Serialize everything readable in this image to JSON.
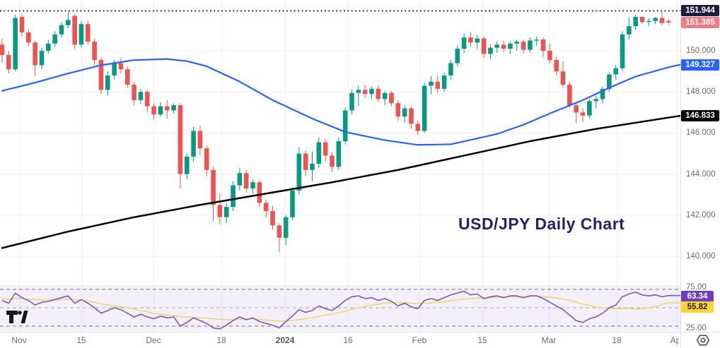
{
  "watermark": "USD/JPY Daily Chart",
  "logo": {
    "name": "tradingview-logo"
  },
  "axis_icon": {
    "name": "chart-settings-icon"
  },
  "colors": {
    "up": "#089981",
    "down": "#ef5350",
    "ma_fast": "#2962ff",
    "ma_slow": "#000000",
    "rsi": "#7e57c2",
    "rsi_ma": "#efd579",
    "grid": "#eef1f7",
    "axis_text": "#696c77",
    "high_badge_bg": "#221b3e",
    "last_badge_bg": "#ee7d88",
    "ma_fast_badge_bg": "#2962ff",
    "ma_slow_badge_bg": "#000000",
    "rsi_badge_bg": "#6c3dbe",
    "rsi_ma_badge_bg": "#fcd535",
    "rsi_band_fill": "rgba(126,87,194,0.09)",
    "dotted_line": "#221b3e"
  },
  "chart_data": {
    "type": "candlestick",
    "title": "USD/JPY Daily Chart",
    "symbol": "USD/JPY",
    "timeframe": "Daily",
    "price_axis": {
      "ticks": [
        {
          "label": "150.000",
          "value": 150.0
        },
        {
          "label": "148.000",
          "value": 148.0
        },
        {
          "label": "146.000",
          "value": 146.0
        },
        {
          "label": "144.000",
          "value": 144.0
        },
        {
          "label": "142.000",
          "value": 142.0
        },
        {
          "label": "140.000",
          "value": 140.0
        }
      ]
    },
    "x_axis": {
      "labels": [
        {
          "text": "Nov",
          "x": 27
        },
        {
          "text": "15",
          "x": 115
        },
        {
          "text": "Dec",
          "x": 217
        },
        {
          "text": "18",
          "x": 313
        },
        {
          "text": "2024",
          "x": 403,
          "year": true
        },
        {
          "text": "16",
          "x": 492
        },
        {
          "text": "Feb",
          "x": 593
        },
        {
          "text": "15",
          "x": 682
        },
        {
          "text": "Mar",
          "x": 776
        },
        {
          "text": "18",
          "x": 872
        },
        {
          "text": "Apr",
          "x": 957
        }
      ]
    },
    "high_line": {
      "label": "151.944",
      "value": 151.944,
      "style": "dotted"
    },
    "last_price": {
      "label": "151.385",
      "value": 151.385,
      "direction": "down"
    },
    "candles": [
      [
        150.3,
        150.6,
        149.4,
        149.8
      ],
      [
        149.8,
        150.0,
        148.9,
        149.1
      ],
      [
        149.1,
        151.75,
        149.0,
        151.6
      ],
      [
        151.65,
        151.8,
        150.7,
        150.9
      ],
      [
        150.9,
        151.05,
        150.2,
        150.4
      ],
      [
        150.4,
        150.5,
        148.75,
        149.3
      ],
      [
        149.3,
        150.15,
        149.1,
        150.0
      ],
      [
        150.0,
        150.55,
        149.85,
        150.35
      ],
      [
        150.35,
        150.95,
        150.2,
        150.8
      ],
      [
        150.8,
        151.4,
        150.65,
        151.25
      ],
      [
        151.25,
        151.92,
        151.1,
        151.5
      ],
      [
        151.7,
        151.8,
        150.1,
        150.3
      ],
      [
        150.3,
        151.45,
        150.15,
        151.3
      ],
      [
        151.3,
        151.45,
        150.3,
        150.45
      ],
      [
        150.45,
        150.6,
        149.3,
        149.55
      ],
      [
        149.55,
        149.7,
        147.9,
        148.1
      ],
      [
        148.1,
        149.0,
        147.8,
        148.8
      ],
      [
        148.8,
        149.55,
        148.6,
        149.4
      ],
      [
        149.4,
        149.65,
        148.9,
        149.1
      ],
      [
        149.1,
        149.25,
        148.2,
        148.35
      ],
      [
        148.35,
        148.5,
        147.35,
        147.6
      ],
      [
        147.6,
        148.15,
        147.4,
        148.0
      ],
      [
        148.0,
        148.1,
        147.0,
        147.3
      ],
      [
        147.3,
        147.45,
        146.65,
        146.9
      ],
      [
        146.9,
        147.5,
        146.8,
        147.3
      ],
      [
        147.3,
        147.6,
        146.7,
        147.1
      ],
      [
        147.1,
        147.45,
        146.95,
        147.35
      ],
      [
        147.35,
        147.45,
        143.3,
        144.0
      ],
      [
        144.0,
        145.0,
        143.75,
        144.85
      ],
      [
        144.85,
        146.3,
        144.6,
        146.1
      ],
      [
        146.1,
        146.35,
        144.9,
        145.25
      ],
      [
        145.25,
        145.4,
        143.9,
        144.2
      ],
      [
        144.2,
        144.35,
        141.7,
        142.5
      ],
      [
        142.5,
        143.05,
        141.55,
        141.9
      ],
      [
        141.9,
        142.6,
        141.6,
        142.4
      ],
      [
        142.4,
        143.65,
        142.2,
        143.45
      ],
      [
        143.45,
        144.3,
        143.2,
        144.05
      ],
      [
        144.05,
        144.2,
        143.1,
        143.3
      ],
      [
        143.3,
        143.75,
        143.05,
        143.6
      ],
      [
        143.6,
        143.7,
        142.4,
        142.6
      ],
      [
        142.6,
        142.75,
        141.9,
        142.2
      ],
      [
        142.2,
        142.45,
        141.3,
        141.5
      ],
      [
        141.5,
        141.6,
        140.2,
        140.9
      ],
      [
        140.9,
        142.0,
        140.55,
        141.9
      ],
      [
        141.9,
        143.35,
        141.75,
        143.2
      ],
      [
        143.2,
        145.3,
        143.0,
        145.0
      ],
      [
        145.0,
        145.15,
        143.9,
        144.2
      ],
      [
        144.2,
        145.1,
        143.65,
        144.5
      ],
      [
        144.5,
        145.8,
        144.3,
        145.55
      ],
      [
        145.55,
        145.7,
        144.6,
        144.9
      ],
      [
        144.9,
        145.05,
        144.1,
        144.35
      ],
      [
        144.35,
        145.8,
        144.2,
        145.6
      ],
      [
        145.6,
        147.25,
        145.45,
        147.1
      ],
      [
        147.1,
        148.1,
        146.9,
        147.95
      ],
      [
        147.95,
        148.3,
        147.3,
        148.1
      ],
      [
        148.1,
        148.35,
        147.7,
        147.9
      ],
      [
        147.9,
        148.25,
        147.65,
        148.15
      ],
      [
        148.15,
        148.3,
        147.5,
        147.65
      ],
      [
        147.65,
        148.05,
        147.35,
        147.95
      ],
      [
        147.95,
        148.05,
        147.3,
        147.45
      ],
      [
        147.45,
        147.6,
        146.6,
        146.8
      ],
      [
        146.8,
        147.35,
        146.5,
        147.2
      ],
      [
        147.2,
        147.3,
        146.2,
        146.45
      ],
      [
        146.45,
        146.6,
        145.9,
        146.1
      ],
      [
        146.1,
        148.45,
        146.0,
        148.3
      ],
      [
        148.3,
        148.75,
        147.9,
        148.5
      ],
      [
        148.5,
        148.8,
        147.95,
        148.15
      ],
      [
        148.15,
        148.95,
        148.0,
        148.8
      ],
      [
        148.8,
        149.55,
        148.6,
        149.4
      ],
      [
        149.4,
        150.25,
        149.25,
        150.1
      ],
      [
        150.1,
        150.85,
        149.9,
        150.65
      ],
      [
        150.65,
        150.9,
        150.2,
        150.4
      ],
      [
        150.4,
        150.75,
        150.1,
        150.6
      ],
      [
        150.6,
        150.7,
        149.65,
        149.85
      ],
      [
        149.85,
        150.3,
        149.6,
        150.15
      ],
      [
        150.15,
        150.45,
        149.9,
        150.3
      ],
      [
        150.3,
        150.5,
        149.95,
        150.1
      ],
      [
        150.1,
        150.45,
        149.85,
        150.35
      ],
      [
        150.35,
        150.55,
        150.0,
        150.45
      ],
      [
        150.45,
        150.55,
        149.9,
        150.05
      ],
      [
        150.05,
        150.65,
        149.9,
        150.5
      ],
      [
        150.5,
        150.7,
        150.25,
        150.55
      ],
      [
        150.55,
        150.65,
        149.7,
        150.0
      ],
      [
        150.0,
        150.35,
        149.4,
        149.55
      ],
      [
        149.55,
        149.7,
        148.8,
        149.0
      ],
      [
        149.0,
        149.5,
        148.2,
        148.35
      ],
      [
        148.35,
        148.5,
        147.2,
        147.35
      ],
      [
        147.35,
        147.5,
        146.5,
        147.0
      ],
      [
        147.0,
        147.2,
        146.55,
        146.85
      ],
      [
        146.85,
        147.65,
        146.7,
        147.55
      ],
      [
        147.55,
        147.8,
        147.2,
        147.65
      ],
      [
        147.65,
        148.25,
        147.45,
        148.15
      ],
      [
        148.15,
        148.95,
        148.0,
        148.85
      ],
      [
        148.85,
        149.3,
        148.6,
        149.15
      ],
      [
        149.15,
        150.95,
        149.0,
        150.8
      ],
      [
        150.8,
        151.6,
        150.55,
        151.2
      ],
      [
        151.2,
        151.75,
        151.0,
        151.65
      ],
      [
        151.65,
        151.7,
        151.3,
        151.4
      ],
      [
        151.4,
        151.6,
        151.2,
        151.45
      ],
      [
        151.45,
        151.65,
        151.3,
        151.6
      ],
      [
        151.6,
        151.944,
        151.25,
        151.35
      ],
      [
        151.45,
        151.55,
        151.25,
        151.385
      ]
    ],
    "overlays": [
      {
        "name": "ma-fast",
        "last_label": "149.327",
        "last_value": 149.327,
        "points": [
          [
            0,
            148.05
          ],
          [
            5,
            148.45
          ],
          [
            10,
            148.9
          ],
          [
            15,
            149.3
          ],
          [
            20,
            149.55
          ],
          [
            25,
            149.6
          ],
          [
            28,
            149.5
          ],
          [
            31,
            149.25
          ],
          [
            36,
            148.5
          ],
          [
            41,
            147.6
          ],
          [
            47,
            146.7
          ],
          [
            52,
            146.05
          ],
          [
            58,
            145.65
          ],
          [
            63,
            145.42
          ],
          [
            68,
            145.45
          ],
          [
            75,
            145.95
          ],
          [
            79,
            146.4
          ],
          [
            83,
            146.95
          ],
          [
            88,
            147.6
          ],
          [
            92,
            148.2
          ],
          [
            96,
            148.75
          ],
          [
            101,
            149.2
          ]
        ]
      },
      {
        "name": "ma-slow",
        "last_label": "146.833",
        "last_value": 146.833,
        "points": [
          [
            0,
            140.4
          ],
          [
            10,
            141.2
          ],
          [
            20,
            141.9
          ],
          [
            30,
            142.5
          ],
          [
            40,
            143.05
          ],
          [
            50,
            143.6
          ],
          [
            60,
            144.2
          ],
          [
            70,
            144.9
          ],
          [
            80,
            145.6
          ],
          [
            90,
            146.2
          ],
          [
            101,
            146.75
          ]
        ]
      }
    ],
    "rsi_pane": {
      "band": {
        "upper": 75,
        "lower": 25
      },
      "band_labels": [
        {
          "label": "75.00",
          "value": 75
        },
        {
          "label": "25.00",
          "value": 25
        }
      ],
      "dash_levels": [
        70,
        50,
        30
      ],
      "series": [
        {
          "name": "rsi",
          "last_label": "63.34",
          "last_value": 63.34,
          "values": [
            58,
            55,
            66,
            61,
            58,
            53,
            56,
            57,
            59,
            61,
            63,
            55,
            59,
            55,
            50,
            44,
            47,
            50,
            48,
            44,
            40,
            43,
            40,
            38,
            41,
            39,
            40,
            30,
            34,
            39,
            36,
            33,
            28,
            27,
            31,
            36,
            40,
            37,
            39,
            35,
            33,
            31,
            28,
            35,
            41,
            48,
            45,
            47,
            52,
            49,
            47,
            52,
            58,
            62,
            63,
            60,
            61,
            58,
            60,
            57,
            52,
            55,
            51,
            49,
            58,
            60,
            58,
            61,
            64,
            66,
            68,
            64,
            65,
            60,
            62,
            63,
            61,
            63,
            63,
            61,
            63,
            63,
            60,
            56,
            52,
            48,
            42,
            36,
            34,
            38,
            40,
            44,
            50,
            53,
            62,
            65,
            67,
            64,
            63,
            64,
            62,
            63.34
          ]
        },
        {
          "name": "rsi-ma",
          "last_label": "55.82",
          "last_value": 55.82,
          "values": [
            59.5,
            59.5,
            60,
            60,
            59.5,
            59,
            58.5,
            58.5,
            58.5,
            59,
            59.5,
            59,
            58.5,
            57.5,
            56,
            54.5,
            53,
            52,
            51,
            50,
            48.5,
            47,
            45.5,
            44,
            43,
            42,
            41.5,
            40.5,
            40,
            39.5,
            39,
            38.5,
            38,
            37.5,
            37,
            37,
            37.5,
            37.5,
            37.5,
            37,
            36.5,
            36,
            35.5,
            35.5,
            36,
            37,
            38,
            39,
            40.5,
            42,
            43,
            44.5,
            46.5,
            48.5,
            50,
            51.5,
            53,
            54,
            55,
            55.5,
            55.5,
            55.5,
            55,
            54.5,
            55,
            55.5,
            56,
            56.5,
            57.5,
            58.5,
            59.5,
            60,
            60.5,
            60.5,
            61,
            61.5,
            61.5,
            62,
            62,
            62,
            62.5,
            62.5,
            62,
            61.5,
            60.5,
            59.5,
            58,
            56,
            54,
            52.5,
            51,
            50,
            49.5,
            49,
            49,
            49.5,
            48.5,
            49,
            50,
            51.5,
            53.5,
            55.82
          ]
        }
      ]
    }
  }
}
